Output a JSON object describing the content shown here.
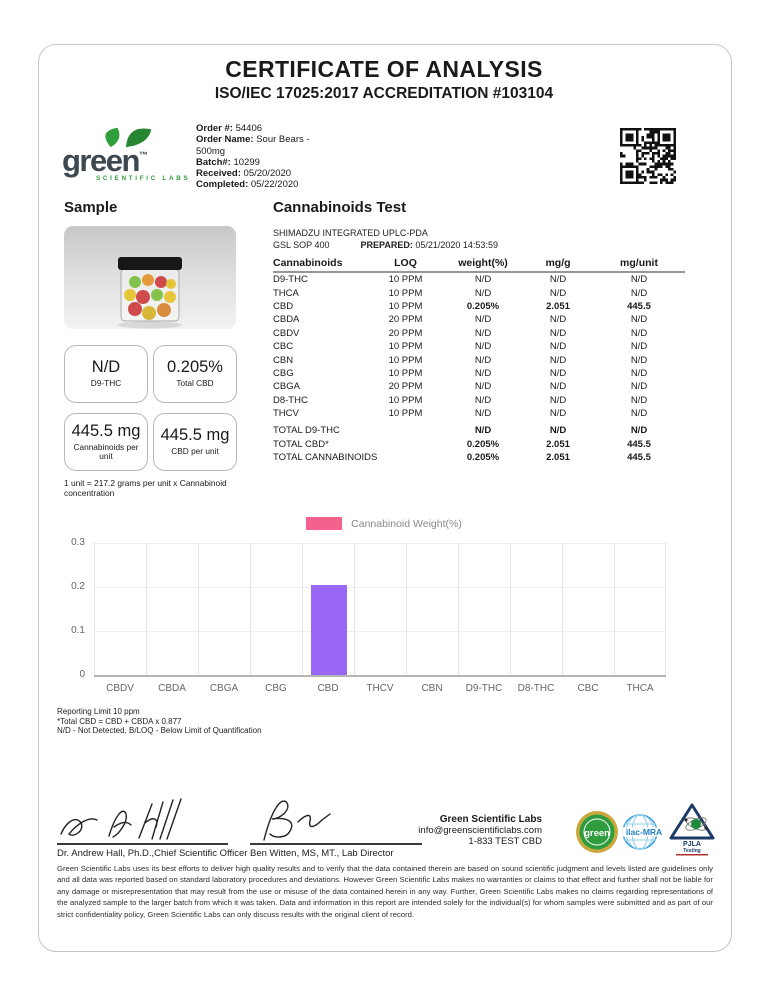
{
  "header": {
    "title": "CERTIFICATE OF ANALYSIS",
    "subtitle": "ISO/IEC 17025:2017 ACCREDITATION #103104"
  },
  "logo": {
    "word": "green",
    "tm": "™",
    "tagline": "SCIENTIFIC LABS"
  },
  "order": {
    "number_label": "Order #:",
    "number": "54406",
    "name_label": "Order Name:",
    "name": "Sour Bears - 500mg",
    "batch_label": "Batch#:",
    "batch": "10299",
    "received_label": "Received:",
    "received": "05/20/2020",
    "completed_label": "Completed:",
    "completed": "05/22/2020"
  },
  "sample": {
    "heading": "Sample",
    "boxes": [
      {
        "value": "N/D",
        "label": "D9-THC"
      },
      {
        "value": "0.205%",
        "label": "Total CBD"
      },
      {
        "value": "445.5 mg",
        "label": "Cannabinoids per unit"
      },
      {
        "value": "445.5 mg",
        "label": "CBD per unit"
      }
    ],
    "unit_note": "1 unit = 217.2 grams per unit x Cannabinoid concentration"
  },
  "test": {
    "heading": "Cannabinoids Test",
    "instrument": "SHIMADZU INTEGRATED UPLC-PDA",
    "sop": "GSL SOP 400",
    "prepared_label": "PREPARED:",
    "prepared": "05/21/2020 14:53:59",
    "columns": [
      "Cannabinoids",
      "LOQ",
      "weight(%)",
      "mg/g",
      "mg/unit"
    ],
    "rows": [
      {
        "name": "D9-THC",
        "loq": "10 PPM",
        "weight": "N/D",
        "mgg": "N/D",
        "mgunit": "N/D",
        "strong": false
      },
      {
        "name": "THCA",
        "loq": "10 PPM",
        "weight": "N/D",
        "mgg": "N/D",
        "mgunit": "N/D",
        "strong": false
      },
      {
        "name": "CBD",
        "loq": "10 PPM",
        "weight": "0.205%",
        "mgg": "2.051",
        "mgunit": "445.5",
        "strong": true
      },
      {
        "name": "CBDA",
        "loq": "20 PPM",
        "weight": "N/D",
        "mgg": "N/D",
        "mgunit": "N/D",
        "strong": false
      },
      {
        "name": "CBDV",
        "loq": "20 PPM",
        "weight": "N/D",
        "mgg": "N/D",
        "mgunit": "N/D",
        "strong": false
      },
      {
        "name": "CBC",
        "loq": "10 PPM",
        "weight": "N/D",
        "mgg": "N/D",
        "mgunit": "N/D",
        "strong": false
      },
      {
        "name": "CBN",
        "loq": "10 PPM",
        "weight": "N/D",
        "mgg": "N/D",
        "mgunit": "N/D",
        "strong": false
      },
      {
        "name": "CBG",
        "loq": "10 PPM",
        "weight": "N/D",
        "mgg": "N/D",
        "mgunit": "N/D",
        "strong": false
      },
      {
        "name": "CBGA",
        "loq": "20 PPM",
        "weight": "N/D",
        "mgg": "N/D",
        "mgunit": "N/D",
        "strong": false
      },
      {
        "name": "D8-THC",
        "loq": "10 PPM",
        "weight": "N/D",
        "mgg": "N/D",
        "mgunit": "N/D",
        "strong": false
      },
      {
        "name": "THCV",
        "loq": "10 PPM",
        "weight": "N/D",
        "mgg": "N/D",
        "mgunit": "N/D",
        "strong": false
      }
    ],
    "totals": [
      {
        "name": "TOTAL D9-THC",
        "weight": "N/D",
        "mgg": "N/D",
        "mgunit": "N/D"
      },
      {
        "name": "TOTAL CBD*",
        "weight": "0.205%",
        "mgg": "2.051",
        "mgunit": "445.5"
      },
      {
        "name": "TOTAL CANNABINOIDS",
        "weight": "0.205%",
        "mgg": "2.051",
        "mgunit": "445.5"
      }
    ]
  },
  "chart_data": {
    "type": "bar",
    "legend": "Cannabinoid Weight(%)",
    "legend_color": "#F4618C",
    "bar_color": "#9966F5",
    "categories": [
      "CBDV",
      "CBDA",
      "CBGA",
      "CBG",
      "CBD",
      "THCV",
      "CBN",
      "D9-THC",
      "D8-THC",
      "CBC",
      "THCA"
    ],
    "values": [
      0,
      0,
      0,
      0,
      0.205,
      0,
      0,
      0,
      0,
      0,
      0
    ],
    "ylim": [
      0,
      0.3
    ],
    "yticks": [
      0,
      0.1,
      0.2,
      0.3
    ],
    "grid": "on",
    "legend_position": "top-center"
  },
  "footnotes": [
    "Reporting Limit 10 ppm",
    "*Total CBD = CBD + CBDA x 0.877",
    "N/D - Not Detected, B/LOQ - Below Limit of Quantification"
  ],
  "signatures": [
    {
      "name": "Dr. Andrew Hall, Ph.D.,Chief Scientific Officer"
    },
    {
      "name": "Ben Witten, MS, MT., Lab Director"
    }
  ],
  "lab": {
    "name": "Green Scientific Labs",
    "email": "info@greenscientificlabs.com",
    "phone": "1-833 TEST CBD"
  },
  "badges": {
    "seal": "green",
    "ilac": "ilac-MRA",
    "pjla": "PJLA",
    "pjla_sub": "Testing"
  },
  "disclaimer": "Green Scientific Labs uses its best efforts to deliver high quality results and to verify that the data contained therein are based on sound scientific judgment and levels listed are guidelines only and all data was reported based on standard laboratory procedures and deviations. However Green Scientific Labs makes no warranties or claims to that effect and further shall not be liable for any damage or misrepresentation that may result from the use or misuse of the data contained herein in any way. Further, Green Scientific Labs makes no claims regarding representations of the analyzed sample to the larger batch from which it was taken. Data and information in this report are intended solely for the individual(s) for whom samples were submitted and as part of our strict confidentiality policy, Green Scientific Labs can only discuss results with the original client of record."
}
